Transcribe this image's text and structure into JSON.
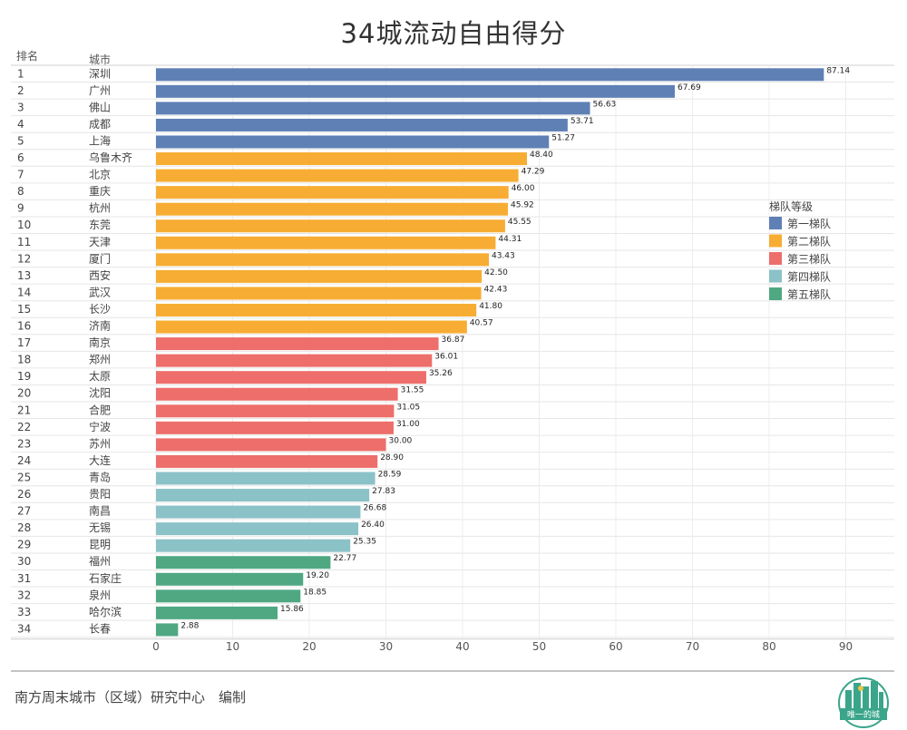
{
  "chart_data": {
    "type": "bar",
    "orientation": "horizontal",
    "title": "34城流动自由得分",
    "header_rank": "排名",
    "header_city": "城市",
    "xlim": [
      0,
      90
    ],
    "xticks": [
      "0",
      "10",
      "20",
      "30",
      "40",
      "50",
      "60",
      "70",
      "80",
      "90"
    ],
    "grid": true,
    "legend": {
      "title": "梯队等级",
      "placement": "right",
      "items": [
        {
          "label": "第一梯队",
          "color": "#5f80b5"
        },
        {
          "label": "第二梯队",
          "color": "#f7ad33"
        },
        {
          "label": "第三梯队",
          "color": "#ed6e6a"
        },
        {
          "label": "第四梯队",
          "color": "#8bc2c8"
        },
        {
          "label": "第五梯队",
          "color": "#4fa882"
        }
      ]
    },
    "rows": [
      {
        "rank": "1",
        "city": "深圳",
        "value": 87.14,
        "label": "87.14",
        "tier": 0
      },
      {
        "rank": "2",
        "city": "广州",
        "value": 67.69,
        "label": "67.69",
        "tier": 0
      },
      {
        "rank": "3",
        "city": "佛山",
        "value": 56.63,
        "label": "56.63",
        "tier": 0
      },
      {
        "rank": "4",
        "city": "成都",
        "value": 53.71,
        "label": "53.71",
        "tier": 0
      },
      {
        "rank": "5",
        "city": "上海",
        "value": 51.27,
        "label": "51.27",
        "tier": 0
      },
      {
        "rank": "6",
        "city": "乌鲁木齐",
        "value": 48.4,
        "label": "48.40",
        "tier": 1
      },
      {
        "rank": "7",
        "city": "北京",
        "value": 47.29,
        "label": "47.29",
        "tier": 1
      },
      {
        "rank": "8",
        "city": "重庆",
        "value": 46.0,
        "label": "46.00",
        "tier": 1
      },
      {
        "rank": "9",
        "city": "杭州",
        "value": 45.92,
        "label": "45.92",
        "tier": 1
      },
      {
        "rank": "10",
        "city": "东莞",
        "value": 45.55,
        "label": "45.55",
        "tier": 1
      },
      {
        "rank": "11",
        "city": "天津",
        "value": 44.31,
        "label": "44.31",
        "tier": 1
      },
      {
        "rank": "12",
        "city": "厦门",
        "value": 43.43,
        "label": "43.43",
        "tier": 1
      },
      {
        "rank": "13",
        "city": "西安",
        "value": 42.5,
        "label": "42.50",
        "tier": 1
      },
      {
        "rank": "14",
        "city": "武汉",
        "value": 42.43,
        "label": "42.43",
        "tier": 1
      },
      {
        "rank": "15",
        "city": "长沙",
        "value": 41.8,
        "label": "41.80",
        "tier": 1
      },
      {
        "rank": "16",
        "city": "济南",
        "value": 40.57,
        "label": "40.57",
        "tier": 1
      },
      {
        "rank": "17",
        "city": "南京",
        "value": 36.87,
        "label": "36.87",
        "tier": 2
      },
      {
        "rank": "18",
        "city": "郑州",
        "value": 36.01,
        "label": "36.01",
        "tier": 2
      },
      {
        "rank": "19",
        "city": "太原",
        "value": 35.26,
        "label": "35.26",
        "tier": 2
      },
      {
        "rank": "20",
        "city": "沈阳",
        "value": 31.55,
        "label": "31.55",
        "tier": 2
      },
      {
        "rank": "21",
        "city": "合肥",
        "value": 31.05,
        "label": "31.05",
        "tier": 2
      },
      {
        "rank": "22",
        "city": "宁波",
        "value": 31.0,
        "label": "31.00",
        "tier": 2
      },
      {
        "rank": "23",
        "city": "苏州",
        "value": 30.0,
        "label": "30.00",
        "tier": 2
      },
      {
        "rank": "24",
        "city": "大连",
        "value": 28.9,
        "label": "28.90",
        "tier": 2
      },
      {
        "rank": "25",
        "city": "青岛",
        "value": 28.59,
        "label": "28.59",
        "tier": 3
      },
      {
        "rank": "26",
        "city": "贵阳",
        "value": 27.83,
        "label": "27.83",
        "tier": 3
      },
      {
        "rank": "27",
        "city": "南昌",
        "value": 26.68,
        "label": "26.68",
        "tier": 3
      },
      {
        "rank": "28",
        "city": "无锡",
        "value": 26.4,
        "label": "26.40",
        "tier": 3
      },
      {
        "rank": "29",
        "city": "昆明",
        "value": 25.35,
        "label": "25.35",
        "tier": 3
      },
      {
        "rank": "30",
        "city": "福州",
        "value": 22.77,
        "label": "22.77",
        "tier": 4
      },
      {
        "rank": "31",
        "city": "石家庄",
        "value": 19.2,
        "label": "19.20",
        "tier": 4
      },
      {
        "rank": "32",
        "city": "泉州",
        "value": 18.85,
        "label": "18.85",
        "tier": 4
      },
      {
        "rank": "33",
        "city": "哈尔滨",
        "value": 15.86,
        "label": "15.86",
        "tier": 4
      },
      {
        "rank": "34",
        "city": "长春",
        "value": 2.88,
        "label": "2.88",
        "tier": 4
      }
    ]
  },
  "footer": {
    "note": "南方周末城市（区域）研究中心　编制",
    "logo_text": "唯一的城"
  }
}
